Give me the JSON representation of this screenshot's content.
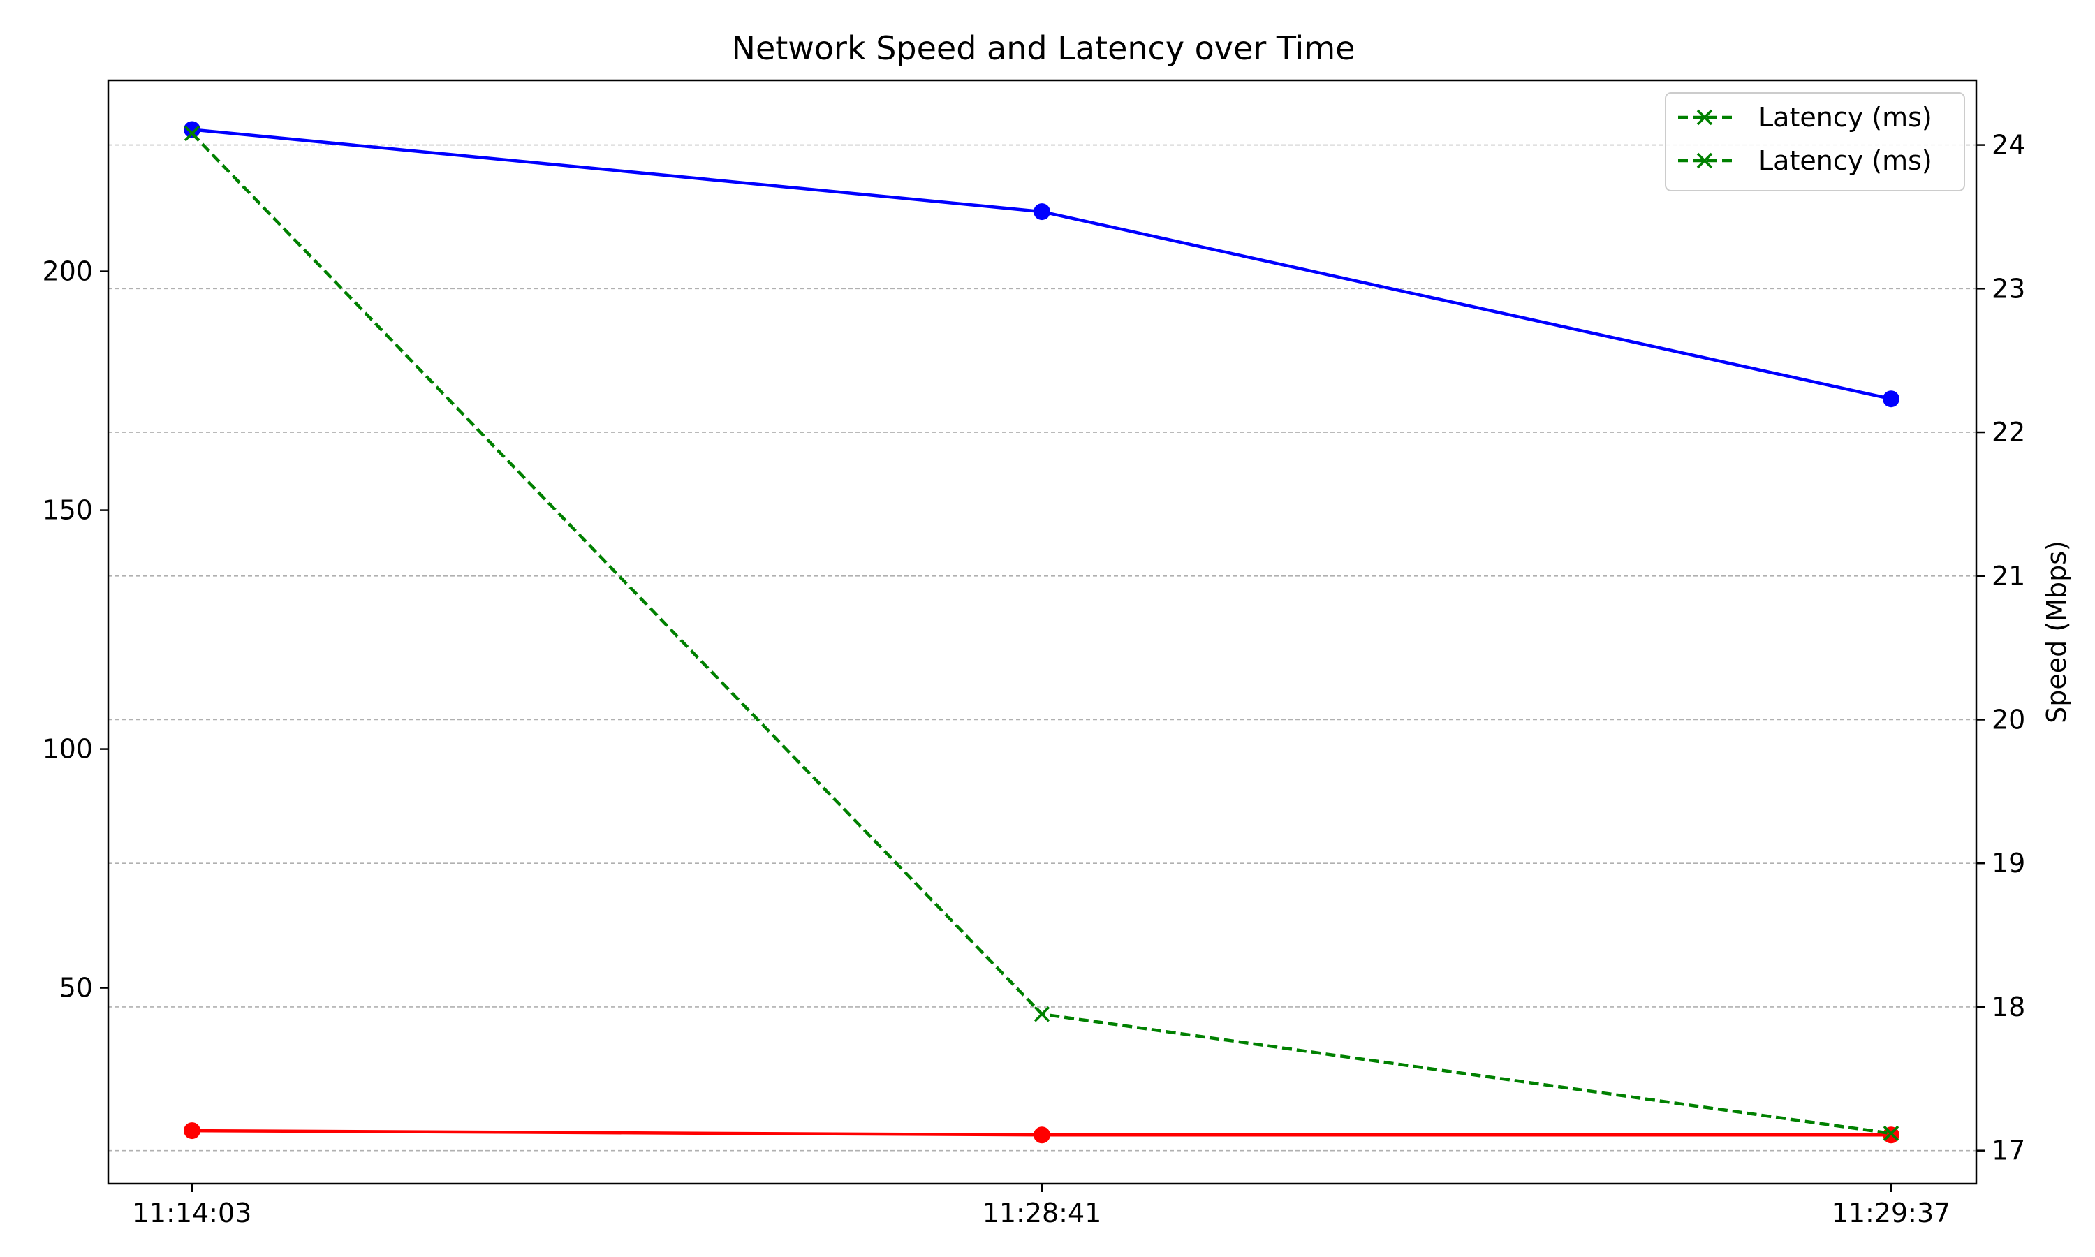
{
  "chart_data": {
    "type": "line",
    "title": "Network Speed and Latency over Time",
    "x": [
      "11:14:03",
      "11:28:41",
      "11:29:37"
    ],
    "left_axis": {
      "ylabel": "",
      "ylim": [
        9,
        240
      ],
      "ticks": [
        50,
        100,
        150,
        200
      ]
    },
    "right_axis": {
      "ylabel": "Speed (Mbps)",
      "ylim": [
        16.77,
        24.45
      ],
      "ticks": [
        17,
        18,
        19,
        20,
        21,
        22,
        23,
        24
      ]
    },
    "series": [
      {
        "name": "",
        "axis": "left",
        "color": "#0000ff",
        "line": "solid",
        "marker": "circle",
        "values": [
          229.7,
          212.5,
          173.3
        ]
      },
      {
        "name": "",
        "axis": "left",
        "color": "#ff0000",
        "line": "solid",
        "marker": "circle",
        "values": [
          20.1,
          19.2,
          19.2
        ]
      },
      {
        "name": "Latency (ms)",
        "axis": "right",
        "color": "#008000",
        "line": "dashed",
        "marker": "x",
        "values": [
          24.08,
          17.95,
          17.12
        ]
      }
    ],
    "grid": "horizontal-dashed",
    "legend": {
      "placement": "top-right",
      "entries": [
        {
          "label": "Latency (ms)",
          "color": "#008000",
          "line": "dashed",
          "marker": "x"
        },
        {
          "label": "Latency (ms)",
          "color": "#008000",
          "line": "dashed",
          "marker": "x"
        }
      ]
    }
  }
}
